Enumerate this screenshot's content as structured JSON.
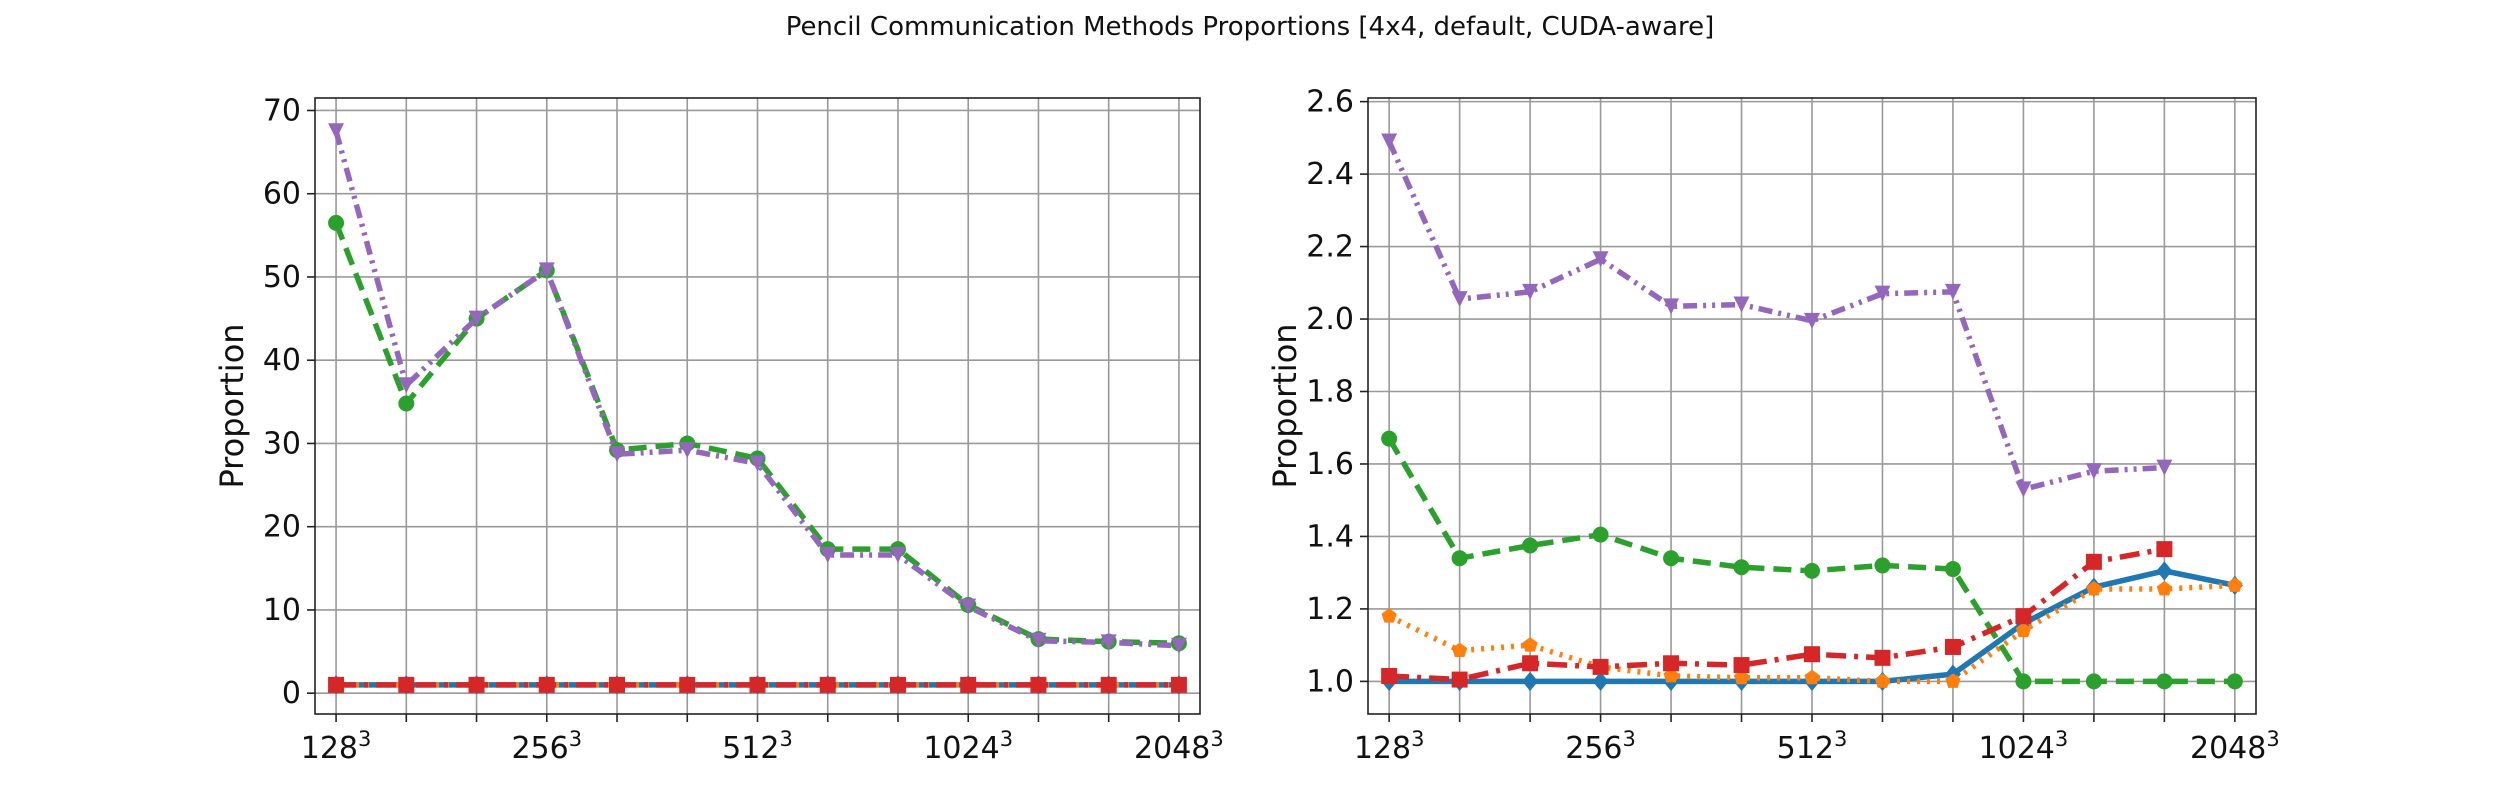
{
  "figure": {
    "title": "Pencil Communication Methods Proportions [4x4, default, CUDA-aware]"
  },
  "chart_data": [
    {
      "type": "line",
      "ylabel": "Proportion",
      "xlabel": "",
      "ylim": [
        -2.5,
        71.5
      ],
      "xlim": [
        -0.3,
        12.3
      ],
      "grid": true,
      "x": [
        0,
        1,
        2,
        3,
        4,
        5,
        6,
        7,
        8,
        9,
        10,
        11,
        12
      ],
      "x_ticks": [
        {
          "pos": 0,
          "label": "128",
          "sup": "3"
        },
        {
          "pos": 3,
          "label": "256",
          "sup": "3"
        },
        {
          "pos": 6,
          "label": "512",
          "sup": "3"
        },
        {
          "pos": 9,
          "label": "1024",
          "sup": "3"
        },
        {
          "pos": 12,
          "label": "2048",
          "sup": "3"
        }
      ],
      "y_ticks": [
        0,
        10,
        20,
        30,
        40,
        50,
        60,
        70
      ],
      "series": [
        {
          "color": "#1f77b4",
          "style": "solid",
          "marker": "diamond",
          "values": [
            1,
            1,
            1,
            1,
            1,
            1,
            1,
            1,
            1,
            1,
            1,
            1,
            1
          ]
        },
        {
          "color": "#ff7f0e",
          "style": "dotted",
          "marker": "pentagon",
          "values": [
            1,
            1,
            1,
            1,
            1,
            1,
            1,
            1,
            1,
            1,
            1,
            1,
            1
          ]
        },
        {
          "color": "#2ca02c",
          "style": "dashed",
          "marker": "circle",
          "values": [
            56.5,
            34.8,
            45,
            50.8,
            29.2,
            30,
            28.2,
            17.3,
            17.3,
            10.6,
            6.5,
            6.2,
            6
          ]
        },
        {
          "color": "#d62728",
          "style": "dashdot",
          "marker": "square",
          "values": [
            1,
            1,
            1,
            1,
            1,
            1,
            1,
            1,
            1,
            1,
            1,
            1,
            1
          ]
        },
        {
          "color": "#9467bd",
          "style": "dashdotdot",
          "marker": "triangle-down",
          "values": [
            67.5,
            37,
            45,
            50.8,
            28.7,
            29.2,
            27.6,
            16.6,
            16.6,
            10.4,
            6.3,
            6.1,
            5.7
          ]
        }
      ]
    },
    {
      "type": "line",
      "ylabel": "Proportion",
      "xlabel": "",
      "ylim": [
        0.91,
        2.61
      ],
      "xlim": [
        -0.3,
        12.3
      ],
      "grid": true,
      "x": [
        0,
        1,
        2,
        3,
        4,
        5,
        6,
        7,
        8,
        9,
        10,
        11,
        12
      ],
      "x_ticks": [
        {
          "pos": 0,
          "label": "128",
          "sup": "3"
        },
        {
          "pos": 3,
          "label": "256",
          "sup": "3"
        },
        {
          "pos": 6,
          "label": "512",
          "sup": "3"
        },
        {
          "pos": 9,
          "label": "1024",
          "sup": "3"
        },
        {
          "pos": 12,
          "label": "2048",
          "sup": "3"
        }
      ],
      "y_ticks": [
        1.0,
        1.2,
        1.4,
        1.6,
        1.8,
        2.0,
        2.2,
        2.4,
        2.6
      ],
      "y_tick_labels": [
        "1.0",
        "1.2",
        "1.4",
        "1.6",
        "1.8",
        "2.0",
        "2.2",
        "2.4",
        "2.6"
      ],
      "series": [
        {
          "color": "#1f77b4",
          "style": "solid",
          "marker": "diamond",
          "values": [
            1.0,
            1.0,
            1.0,
            1.0,
            1.0,
            1.0,
            1.0,
            1.0,
            1.02,
            1.16,
            1.26,
            1.305,
            1.265
          ]
        },
        {
          "color": "#ff7f0e",
          "style": "dotted",
          "marker": "pentagon",
          "values": [
            1.18,
            1.085,
            1.1,
            1.04,
            1.015,
            1.01,
            1.01,
            1.0,
            1.0,
            1.14,
            1.255,
            1.255,
            1.265
          ]
        },
        {
          "color": "#2ca02c",
          "style": "dashed",
          "marker": "circle",
          "values": [
            1.67,
            1.34,
            1.375,
            1.405,
            1.34,
            1.315,
            1.305,
            1.32,
            1.31,
            1.0,
            1.0,
            1.0,
            1.0
          ]
        },
        {
          "color": "#d62728",
          "style": "dashdot",
          "marker": "square",
          "values": [
            1.015,
            1.005,
            1.05,
            1.04,
            1.05,
            1.045,
            1.075,
            1.065,
            1.095,
            1.18,
            1.33,
            1.365,
            null
          ]
        },
        {
          "color": "#9467bd",
          "style": "dashdotdot",
          "marker": "triangle-down",
          "values": [
            2.49,
            2.055,
            2.075,
            2.165,
            2.035,
            2.04,
            1.995,
            2.07,
            2.075,
            1.53,
            1.58,
            1.59,
            null
          ]
        }
      ]
    }
  ]
}
